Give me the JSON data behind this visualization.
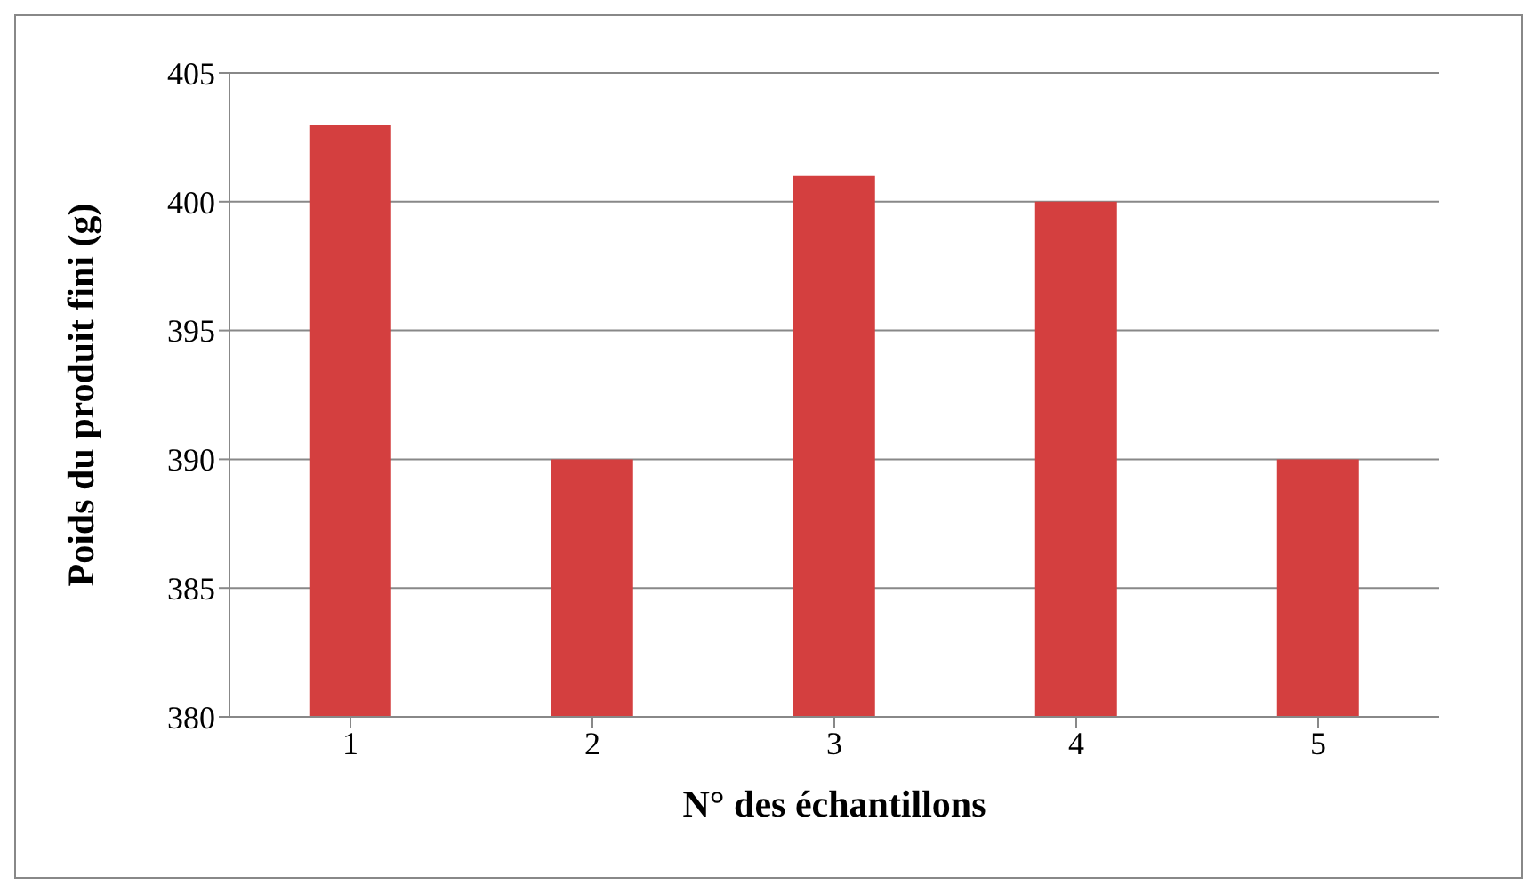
{
  "chart_data": {
    "type": "bar",
    "xlabel": "N° des échantillons",
    "ylabel": "Poids du produit fini (g)",
    "categories": [
      "1",
      "2",
      "3",
      "4",
      "5"
    ],
    "values": [
      403,
      390,
      401,
      400,
      390
    ],
    "color": "#d43f3f",
    "ylim": [
      380,
      405
    ],
    "yticks": [
      380,
      385,
      390,
      395,
      400,
      405
    ],
    "grid": "y"
  }
}
